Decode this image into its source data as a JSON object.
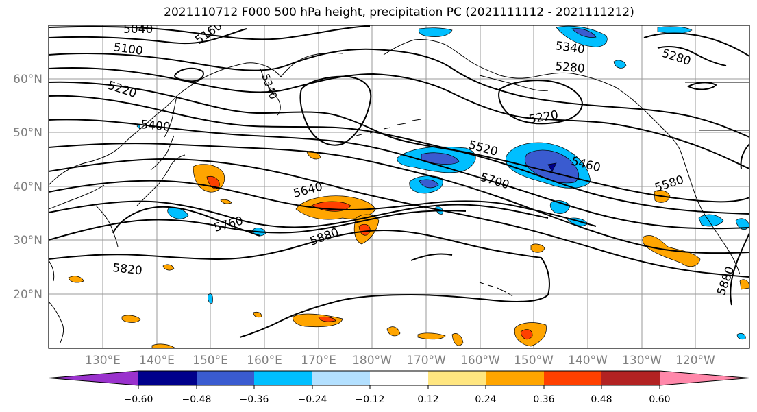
{
  "title": "2021110712 F000 500 hPa height, precipitation PC (2021111112 - 2021111212)",
  "lat_labels": [
    "60°N",
    "50°N",
    "40°N",
    "30°N",
    "20°N"
  ],
  "lon_labels": [
    "130°E",
    "140°E",
    "150°E",
    "160°E",
    "170°E",
    "180°W",
    "170°W",
    "160°W",
    "150°W",
    "140°W",
    "130°W",
    "120°W"
  ],
  "contour_labels": [
    "5040",
    "5100",
    "5160",
    "5220",
    "5400",
    "5520",
    "5460",
    "5640",
    "5700",
    "5760",
    "5880",
    "5820",
    "5340",
    "5280",
    "5220",
    "5280",
    "5580",
    "5880",
    "5340"
  ],
  "colorbar": {
    "ticks": [
      "−0.60",
      "−0.48",
      "−0.36",
      "−0.24",
      "−0.12",
      "0.12",
      "0.24",
      "0.36",
      "0.48",
      "0.60"
    ],
    "colors": [
      "#9a32cd",
      "#00008b",
      "#3a5bd0",
      "#00bfff",
      "#b3e0ff",
      "#ffffff",
      "#ffe680",
      "#ffa500",
      "#ff4000",
      "#b22222",
      "#ff88aa"
    ]
  }
}
